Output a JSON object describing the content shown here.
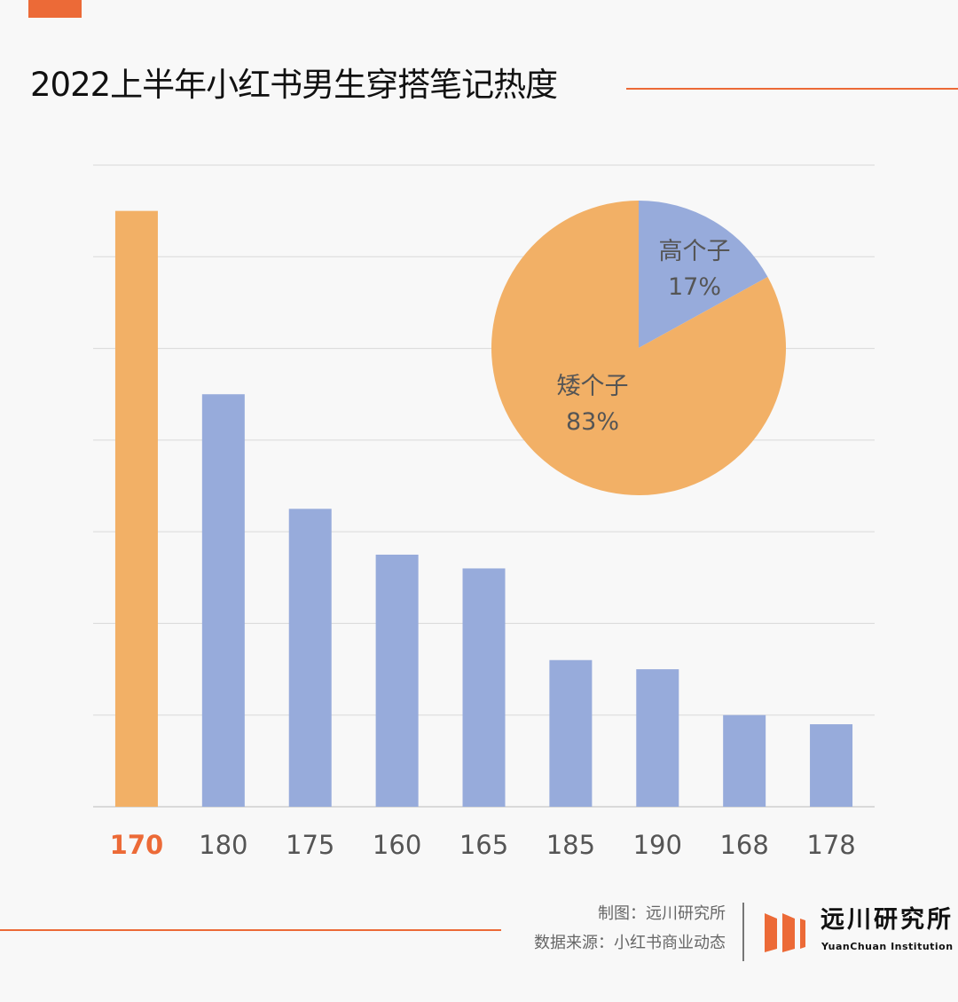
{
  "header": {
    "title": "2022上半年小红书男生穿搭笔记热度"
  },
  "colors": {
    "accent": "#ec6a37",
    "highlight_bar": "#f2b066",
    "bar": "#97abdb",
    "grid": "#d9d9d9"
  },
  "chart_data": [
    {
      "type": "bar",
      "title": "2022上半年小红书男生穿搭笔记热度",
      "xlabel": "",
      "ylabel": "",
      "categories": [
        "170",
        "180",
        "175",
        "160",
        "165",
        "185",
        "190",
        "168",
        "178"
      ],
      "values": [
        6.5,
        4.5,
        3.25,
        2.75,
        2.6,
        1.6,
        1.5,
        1.0,
        0.9
      ],
      "highlight": "170",
      "ylim": [
        0,
        7
      ],
      "grid": true,
      "y_tick_labels_shown": false
    },
    {
      "type": "pie",
      "labels": [
        "高个子",
        "矮个子"
      ],
      "values": [
        17,
        83
      ],
      "value_labels": [
        "17%",
        "83%"
      ],
      "colors": [
        "#97abdb",
        "#f2b066"
      ]
    }
  ],
  "footer": {
    "credit": "制图：远川研究所",
    "source": "数据来源：小红书商业动态",
    "logo_cn": "远川研究所",
    "logo_en": "YuanChuan Institution"
  }
}
